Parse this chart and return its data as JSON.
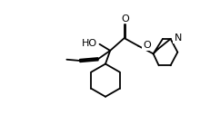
{
  "bg": "#ffffff",
  "lc": "#000000",
  "lw": 1.3,
  "fs": 8.0,
  "figsize": [
    2.32,
    1.48
  ],
  "dpi": 100,
  "xlim": [
    -1.5,
    10.5
  ],
  "ylim": [
    -0.5,
    8.0
  ]
}
